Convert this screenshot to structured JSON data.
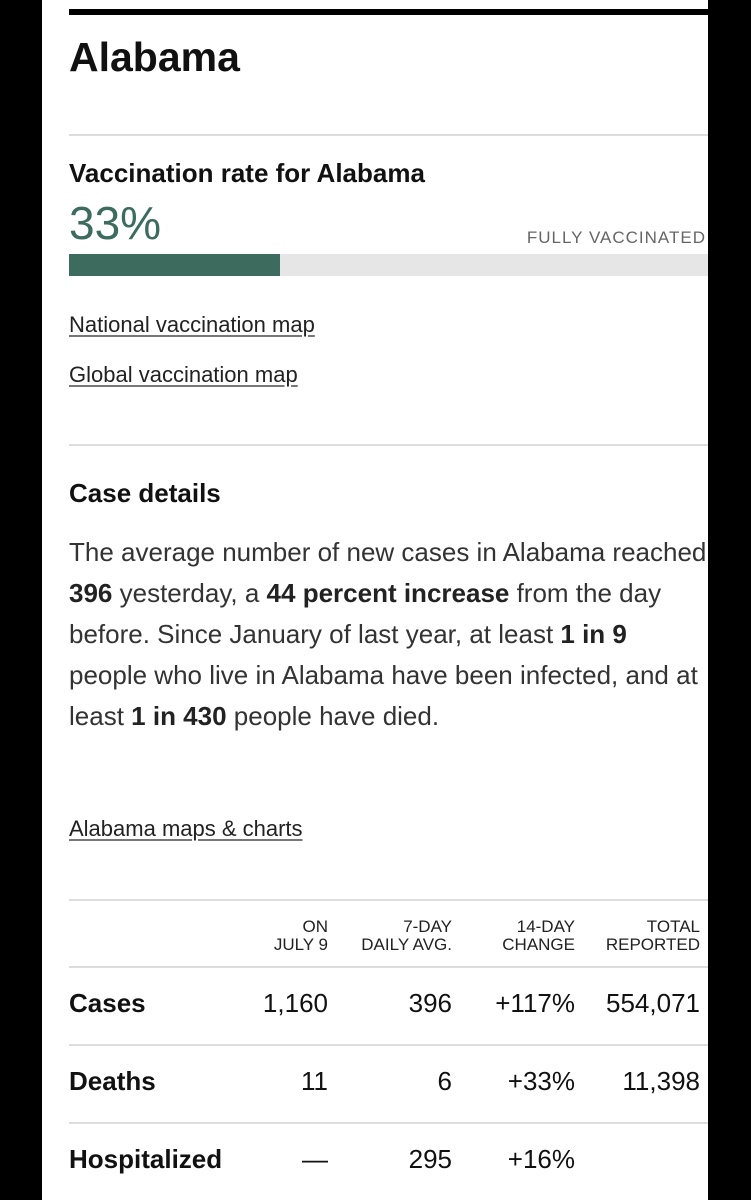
{
  "header": {
    "title": "Alabama"
  },
  "vaccination": {
    "title": "Vaccination rate for Alabama",
    "rate": {
      "value": 33,
      "label": "33%"
    },
    "status": "FULLY VACCINATED",
    "color": "#3d6b5e"
  },
  "links": [
    "National vaccination map",
    "Global vaccination map"
  ],
  "case_details": {
    "title": "Case details",
    "segments": [
      {
        "text": "The average number of new cases in Alabama reached ",
        "bold": false
      },
      {
        "text": "396",
        "bold": true
      },
      {
        "text": " yesterday, a ",
        "bold": false
      },
      {
        "text": "44 percent increase",
        "bold": true
      },
      {
        "text": " from the day before. Since January of last year, at least ",
        "bold": false
      },
      {
        "text": "1 in 9",
        "bold": true
      },
      {
        "text": " people who live in Alabama have been infected, and at least ",
        "bold": false
      },
      {
        "text": "1 in 430",
        "bold": true
      },
      {
        "text": " people have died.",
        "bold": false
      }
    ],
    "link": "Alabama maps & charts"
  },
  "table": {
    "headers": [
      [
        "ON",
        "JULY 9"
      ],
      [
        "7-DAY",
        "DAILY AVG."
      ],
      [
        "14-DAY",
        "CHANGE"
      ],
      [
        "TOTAL",
        "REPORTED"
      ]
    ],
    "rows": [
      {
        "label": "Cases",
        "cells": [
          "1,160",
          "396",
          "+117%",
          "554,071"
        ]
      },
      {
        "label": "Deaths",
        "cells": [
          "11",
          "6",
          "+33%",
          "11,398"
        ]
      },
      {
        "label": "Hospitalized",
        "cells": [
          "—",
          "295",
          "+16%"
        ]
      }
    ]
  }
}
